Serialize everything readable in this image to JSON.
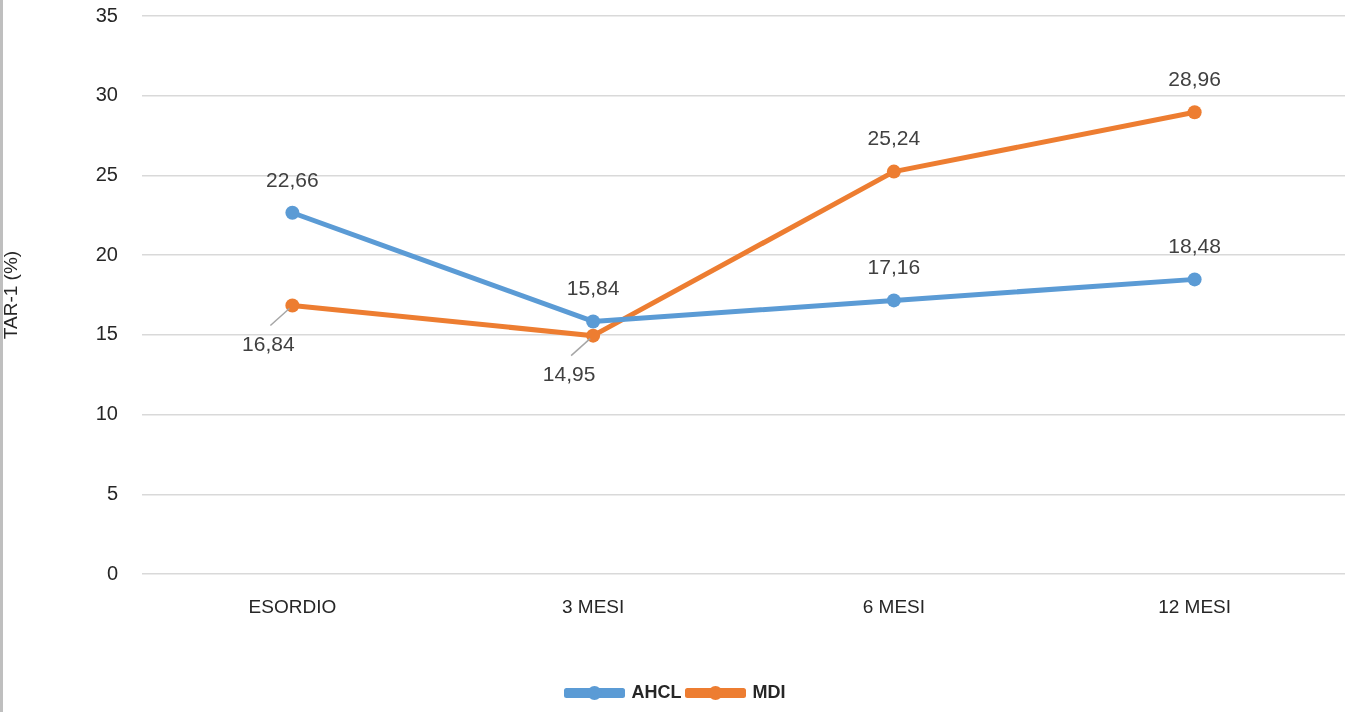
{
  "chart_data": {
    "type": "line",
    "ylabel": "TAR-1 (%)",
    "categories": [
      "ESORDIO",
      "3 MESI",
      "6 MESI",
      "12 MESI"
    ],
    "series": [
      {
        "name": "AHCL",
        "color": "#5b9bd5",
        "values": [
          22.66,
          15.84,
          17.16,
          18.48
        ],
        "value_labels": [
          "22,66",
          "15,84",
          "17,16",
          "18,48"
        ]
      },
      {
        "name": "MDI",
        "color": "#ed7d31",
        "values": [
          16.84,
          14.95,
          25.24,
          28.96
        ],
        "value_labels": [
          "16,84",
          "14,95",
          "25,24",
          "28,96"
        ]
      }
    ],
    "ylim": [
      0,
      35
    ],
    "yticks": [
      0,
      5,
      10,
      15,
      20,
      25,
      30,
      35
    ],
    "grid": "y",
    "legend": "bottom",
    "marker": "circle",
    "line_style": "solid"
  }
}
